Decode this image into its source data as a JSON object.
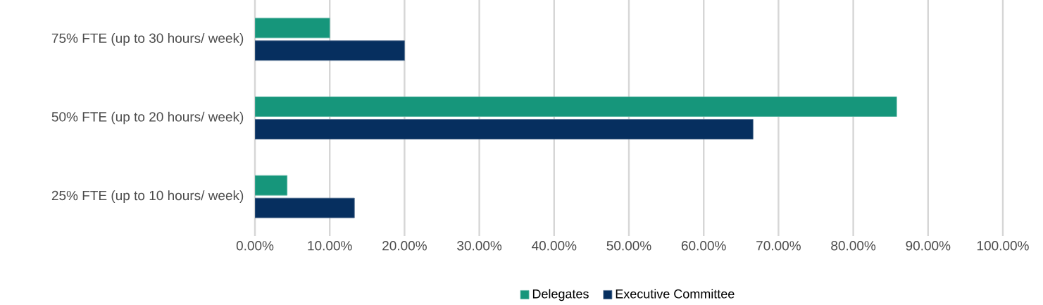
{
  "chart_data": {
    "type": "bar",
    "orientation": "horizontal",
    "categories": [
      "75% FTE (up to 30 hours/ week)",
      "50% FTE (up to 20 hours/ week)",
      "25% FTE (up to 10 hours/ week)"
    ],
    "series": [
      {
        "name": "Delegates",
        "color": "#16967b",
        "values": [
          10,
          85.8,
          4.3
        ]
      },
      {
        "name": "Executive Committee",
        "color": "#062f5f",
        "values": [
          20,
          66.6,
          13.3
        ]
      }
    ],
    "xlim": [
      0,
      100
    ],
    "xticks": [
      {
        "value": 0,
        "label": "0.00%"
      },
      {
        "value": 10,
        "label": "10.00%"
      },
      {
        "value": 20,
        "label": "20.00%"
      },
      {
        "value": 30,
        "label": "30.00%"
      },
      {
        "value": 40,
        "label": "40.00%"
      },
      {
        "value": 50,
        "label": "50.00%"
      },
      {
        "value": 60,
        "label": "60.00%"
      },
      {
        "value": 70,
        "label": "70.00%"
      },
      {
        "value": 80,
        "label": "80.00%"
      },
      {
        "value": 90,
        "label": "90.00%"
      },
      {
        "value": 100,
        "label": "100.00%"
      }
    ],
    "grid": "x",
    "legend": "bottom"
  }
}
